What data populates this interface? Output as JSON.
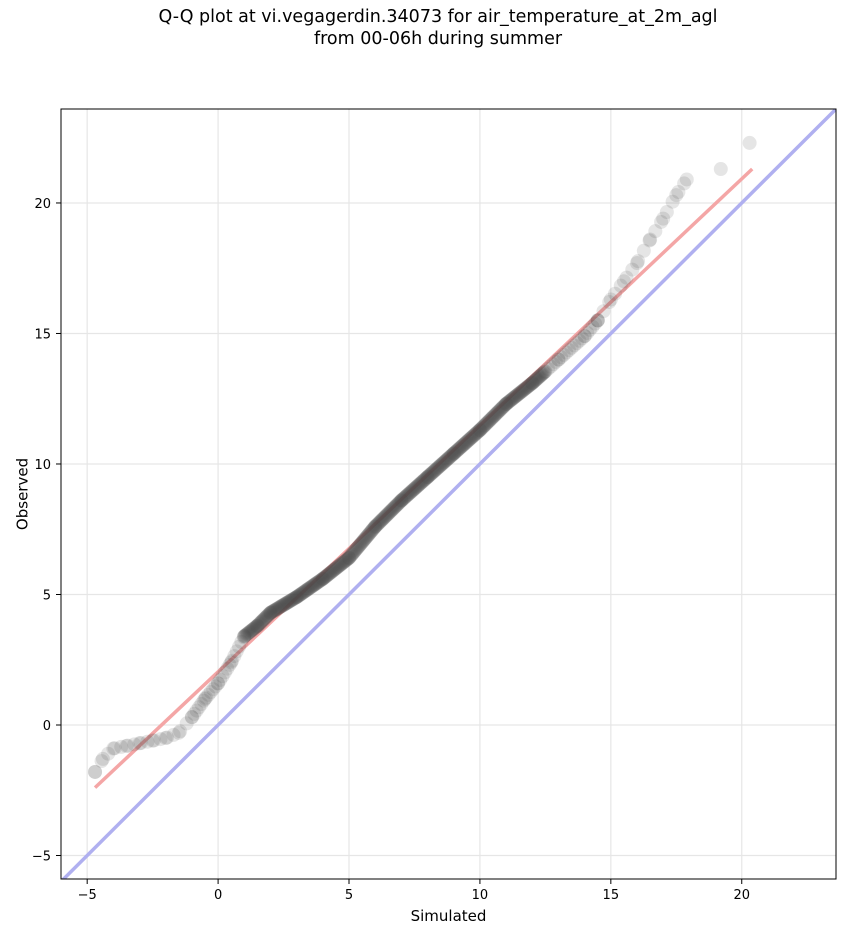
{
  "chart_data": {
    "type": "scatter",
    "title": "Q-Q plot at vi.vegagerdin.34073 for air_temperature_at_2m_agl",
    "subtitle": "from 00-06h during summer",
    "xlabel": "Simulated",
    "ylabel": "Observed",
    "xlim": [
      -6.0,
      23.6
    ],
    "ylim": [
      -5.9,
      23.6
    ],
    "x_ticks": [
      -5,
      0,
      5,
      10,
      15,
      20
    ],
    "y_ticks": [
      -5,
      0,
      5,
      10,
      15,
      20
    ],
    "grid": true,
    "colors": {
      "points": "#444444",
      "fit_line": "#f4a6a6",
      "identity_line": "#b0b0f0",
      "grid": "#e6e6e6"
    },
    "quantile_anchors": {
      "simulated": [
        -4.7,
        -4.4,
        -4.0,
        -3.5,
        -3.0,
        -2.5,
        -2.0,
        -1.5,
        -1.0,
        -0.5,
        0.0,
        0.5,
        1.0,
        1.5,
        2.0,
        3.0,
        4.0,
        5.0,
        6.0,
        7.0,
        8.0,
        9.0,
        10.0,
        11.0,
        12.0,
        13.0,
        14.0,
        14.5,
        15.0,
        15.5,
        16.0,
        16.5,
        17.0,
        17.5,
        17.9,
        19.2,
        20.3
      ],
      "observed": [
        -1.8,
        -1.3,
        -0.9,
        -0.8,
        -0.7,
        -0.6,
        -0.5,
        -0.3,
        0.3,
        1.0,
        1.6,
        2.4,
        3.4,
        3.8,
        4.3,
        4.9,
        5.6,
        6.4,
        7.6,
        8.6,
        9.5,
        10.4,
        11.3,
        12.3,
        13.1,
        14.0,
        14.9,
        15.5,
        16.3,
        17.0,
        17.7,
        18.6,
        19.4,
        20.3,
        20.9,
        21.3,
        22.3
      ]
    },
    "fit_line": {
      "x": [
        -4.7,
        20.4
      ],
      "y": [
        -2.4,
        21.3
      ]
    },
    "identity_line": {
      "x": [
        -6.0,
        23.6
      ],
      "y": [
        -6.0,
        23.6
      ]
    }
  }
}
